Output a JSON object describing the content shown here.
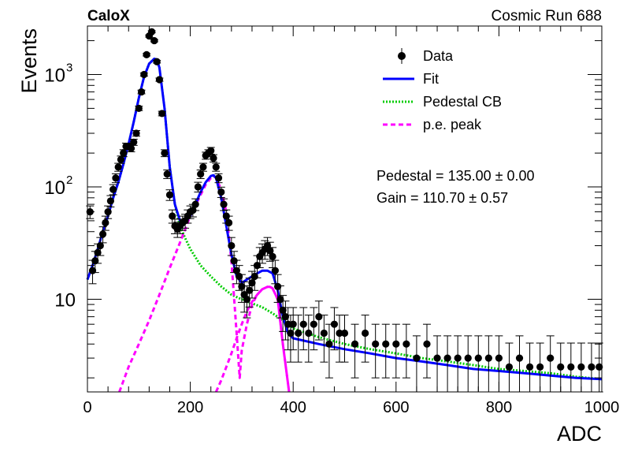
{
  "chart_data": {
    "type": "scatter",
    "experiment_label": "CaloX",
    "run_label": "Cosmic Run 688",
    "xlabel": "ADC",
    "ylabel": "Events",
    "xlim": [
      0,
      1000
    ],
    "ylim": [
      1.5,
      2700
    ],
    "y_scale": "log",
    "x_ticks": [
      0,
      200,
      400,
      600,
      800,
      1000
    ],
    "x_tick_labels": [
      "0",
      "200",
      "400",
      "600",
      "800",
      "1000"
    ],
    "y_tick_labels": [
      {
        "value": 10,
        "label": "10"
      },
      {
        "value": 100,
        "label": "10",
        "exponent": "2"
      },
      {
        "value": 1000,
        "label": "10",
        "exponent": "3"
      }
    ],
    "legend_placement": "top-right",
    "legend": [
      {
        "label": "Data",
        "style": "marker",
        "color": "#000000"
      },
      {
        "label": "Fit",
        "style": "solid",
        "color": "#0000ff"
      },
      {
        "label": "Pedestal CB",
        "style": "dotted",
        "color": "#00cc00"
      },
      {
        "label": "p.e. peak",
        "style": "dashed",
        "color": "#ff00ff"
      }
    ],
    "annotations": [
      {
        "text": "Pedestal = 135.00 ± 0.00"
      },
      {
        "text": "Gain = 110.70 ± 0.57"
      }
    ],
    "series": [
      {
        "name": "Data",
        "kind": "points_with_errors",
        "color": "#000000",
        "x": [
          5,
          10,
          15,
          20,
          25,
          30,
          35,
          40,
          45,
          50,
          55,
          60,
          65,
          70,
          75,
          80,
          85,
          90,
          95,
          100,
          105,
          110,
          115,
          120,
          125,
          130,
          135,
          140,
          145,
          150,
          155,
          160,
          165,
          170,
          175,
          180,
          185,
          190,
          195,
          200,
          205,
          210,
          215,
          220,
          225,
          230,
          235,
          240,
          245,
          250,
          255,
          260,
          265,
          270,
          275,
          280,
          285,
          290,
          295,
          300,
          305,
          310,
          315,
          320,
          325,
          330,
          335,
          340,
          345,
          350,
          355,
          360,
          365,
          370,
          375,
          380,
          385,
          390,
          395,
          400,
          410,
          420,
          430,
          440,
          450,
          460,
          470,
          480,
          490,
          500,
          520,
          540,
          560,
          580,
          600,
          620,
          640,
          660,
          680,
          700,
          720,
          740,
          760,
          780,
          800,
          820,
          840,
          860,
          880,
          900,
          920,
          940,
          960,
          980,
          995
        ],
        "y": [
          60,
          18,
          22,
          26,
          30,
          38,
          48,
          60,
          75,
          95,
          120,
          150,
          175,
          200,
          230,
          230,
          220,
          250,
          300,
          500,
          700,
          1000,
          1500,
          2200,
          2400,
          2000,
          1300,
          900,
          450,
          200,
          130,
          85,
          55,
          45,
          42,
          45,
          48,
          50,
          55,
          60,
          62,
          70,
          100,
          130,
          150,
          190,
          200,
          210,
          180,
          150,
          120,
          90,
          70,
          55,
          48,
          30,
          22,
          18,
          16,
          13,
          11,
          10,
          12,
          14,
          16,
          20,
          24,
          26,
          28,
          30,
          27,
          24,
          18,
          13,
          10,
          8,
          7,
          6,
          5,
          6,
          5,
          6,
          5,
          6,
          7,
          5,
          4,
          6,
          5,
          5,
          4,
          5,
          4,
          4,
          4,
          4,
          3,
          4,
          3,
          3,
          3,
          3,
          3,
          3,
          3,
          2.5,
          3,
          2.5,
          2.5,
          3,
          2.5,
          2.5,
          2.5,
          2.5,
          2.5
        ]
      },
      {
        "name": "Fit",
        "kind": "curve",
        "color": "#0000ff",
        "x": [
          0,
          10,
          20,
          30,
          40,
          50,
          60,
          70,
          80,
          90,
          100,
          110,
          120,
          130,
          135,
          140,
          150,
          160,
          170,
          180,
          190,
          200,
          210,
          220,
          230,
          240,
          245,
          250,
          260,
          270,
          280,
          290,
          300,
          310,
          320,
          330,
          340,
          350,
          360,
          370,
          380,
          390,
          400,
          450,
          500,
          550,
          600,
          650,
          700,
          750,
          800,
          850,
          900,
          950,
          1000
        ],
        "y": [
          15,
          20,
          28,
          40,
          55,
          80,
          110,
          160,
          240,
          380,
          620,
          950,
          1250,
          1380,
          1360,
          1150,
          500,
          150,
          70,
          50,
          48,
          55,
          70,
          90,
          110,
          125,
          127,
          120,
          80,
          45,
          25,
          16,
          14,
          15,
          16,
          17,
          18,
          18,
          17,
          12,
          7,
          5,
          4.5,
          4.0,
          3.6,
          3.3,
          3.0,
          2.8,
          2.6,
          2.4,
          2.3,
          2.2,
          2.1,
          2.0,
          1.95
        ]
      },
      {
        "name": "Pedestal CB",
        "kind": "curve",
        "color": "#00cc00",
        "x": [
          0,
          10,
          20,
          30,
          40,
          50,
          60,
          70,
          80,
          90,
          100,
          110,
          120,
          130,
          135,
          140,
          150,
          160,
          170,
          180,
          190,
          200,
          220,
          240,
          260,
          280,
          300,
          320,
          340,
          360,
          380,
          400,
          450,
          500,
          550,
          600,
          650,
          700,
          750,
          800,
          850,
          900,
          950,
          1000
        ],
        "y": [
          15,
          20,
          28,
          40,
          55,
          80,
          110,
          160,
          240,
          380,
          620,
          950,
          1250,
          1380,
          1360,
          1150,
          500,
          150,
          70,
          45,
          35,
          28,
          20,
          16,
          13,
          11,
          10,
          9.2,
          8.5,
          7.5,
          6.5,
          5.5,
          4.6,
          4.0,
          3.6,
          3.3,
          3.0,
          2.8,
          2.6,
          2.4,
          2.3,
          2.2,
          2.05,
          1.95
        ]
      },
      {
        "name": "p.e. peak",
        "kind": "curve",
        "color": "#ff00ff",
        "x": [
          62,
          80,
          100,
          120,
          140,
          160,
          180,
          200,
          220,
          230,
          240,
          245,
          250,
          260,
          270,
          280,
          290,
          296,
          300,
          310,
          320,
          330,
          340,
          350,
          355,
          360,
          370,
          380,
          392
        ],
        "y": [
          1.5,
          2.5,
          4,
          6.5,
          11,
          19,
          32,
          55,
          85,
          105,
          120,
          125,
          120,
          95,
          60,
          22,
          5,
          2,
          3.5,
          6,
          9,
          11,
          12.3,
          12.9,
          12.9,
          12.5,
          10,
          4,
          1.5
        ]
      },
      {
        "name": "p.e. peak",
        "kind": "curve",
        "color": "#ff00ff",
        "x": [
          250,
          260,
          270,
          280,
          290,
          300,
          310,
          320,
          330,
          340,
          350,
          355,
          360,
          370,
          380,
          392
        ],
        "y": [
          1.5,
          1.9,
          2.5,
          3.3,
          4.5,
          6,
          7.8,
          9.5,
          11,
          12.3,
          12.9,
          12.9,
          12.5,
          10,
          4,
          1.5
        ]
      }
    ]
  }
}
